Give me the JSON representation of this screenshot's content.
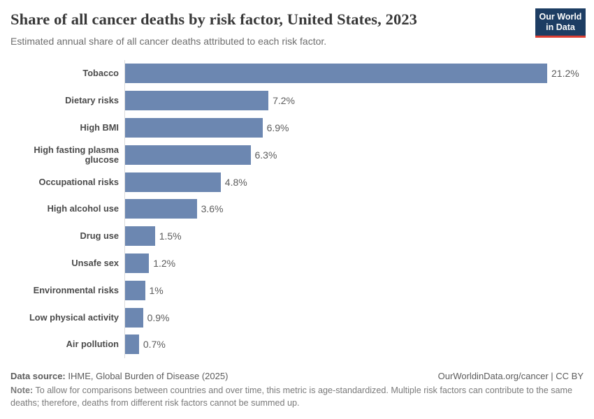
{
  "header": {
    "title": "Share of all cancer deaths by risk factor, United States, 2023",
    "subtitle": "Estimated annual share of all cancer deaths attributed to each risk factor."
  },
  "logo": {
    "line1": "Our World",
    "line2": "in Data",
    "background_color": "#1d3d63",
    "accent_color": "#dc3e32"
  },
  "chart_data": {
    "type": "bar",
    "orientation": "horizontal",
    "title": "Share of all cancer deaths by risk factor, United States, 2023",
    "subtitle": "Estimated annual share of all cancer deaths attributed to each risk factor.",
    "categories": [
      "Tobacco",
      "Dietary risks",
      "High BMI",
      "High fasting plasma glucose",
      "Occupational risks",
      "High alcohol use",
      "Drug use",
      "Unsafe sex",
      "Environmental risks",
      "Low physical activity",
      "Air pollution"
    ],
    "values": [
      21.2,
      7.2,
      6.9,
      6.3,
      4.8,
      3.6,
      1.5,
      1.2,
      1,
      0.9,
      0.7
    ],
    "value_labels": [
      "21.2%",
      "7.2%",
      "6.9%",
      "6.3%",
      "4.8%",
      "3.6%",
      "1.5%",
      "1.2%",
      "1%",
      "0.9%",
      "0.7%"
    ],
    "unit": "%",
    "xlim": [
      0,
      21.2
    ],
    "grid": false,
    "legend": false,
    "bar_color": "#6c87b1"
  },
  "footer": {
    "datasource_label": "Data source:",
    "datasource_text": " IHME, Global Burden of Disease (2025)",
    "attribution": "OurWorldinData.org/cancer | CC BY",
    "note_label": "Note:",
    "note_text": " To allow for comparisons between countries and over time, this metric is age-standardized. Multiple risk factors can contribute to the same deaths; therefore, deaths from different risk factors cannot be summed up."
  }
}
